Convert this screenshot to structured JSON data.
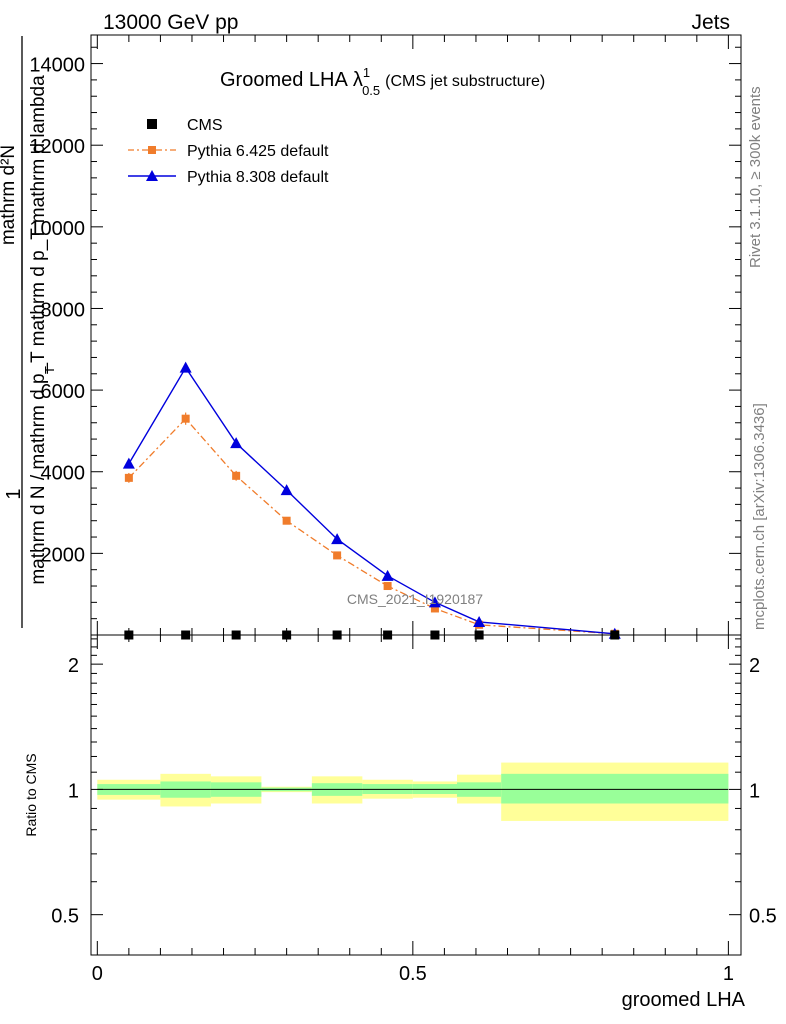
{
  "header": {
    "left": "13000 GeV pp",
    "right": "Jets",
    "side_top": "Rivet 3.1.10, ≥ 300k events",
    "side_bottom": "mcplots.cern.ch [arXiv:1306.3436]",
    "watermark": "CMS_2021_I1920187"
  },
  "colors": {
    "pythia6": "#f07c2b",
    "pythia8": "#0000dd",
    "cms": "#000000",
    "band_inner": "#99ff99",
    "band_outer": "#ffff99",
    "side_text": "#808080"
  },
  "chart_data": [
    {
      "type": "line",
      "title": "Groomed LHA",
      "title_symbol": "λ",
      "title_sup": "1",
      "title_sub": "0.5",
      "title_suffix": "(CMS jet substructure)",
      "ylabel_top": "1",
      "ylabel_numerator": "mathrm d²N",
      "ylabel_denominator": "mathrm d N / mathrm d p_T mathrm d p_T mathrm d lambda",
      "ylabel_sub": "T",
      "xlim": [
        -0.01,
        1.02
      ],
      "ylim": [
        0,
        14700
      ],
      "yticks": [
        2000,
        4000,
        6000,
        8000,
        10000,
        12000,
        14000
      ],
      "ytick_labels": [
        "2000",
        "4000",
        "6000",
        "8000",
        "10000",
        "12000",
        "14000"
      ],
      "legend_position": "top-left",
      "legend": [
        {
          "label": "CMS",
          "marker": "square"
        },
        {
          "label": "Pythia 6.425 default",
          "marker": "square",
          "style": "dash-dot"
        },
        {
          "label": "Pythia 8.308 default",
          "marker": "triangle",
          "style": "solid"
        }
      ],
      "series": [
        {
          "name": "CMS",
          "x": [
            0.05,
            0.14,
            0.22,
            0.3,
            0.38,
            0.46,
            0.535,
            0.605,
            0.82
          ],
          "y": [
            0,
            0,
            0,
            0,
            0,
            0,
            0,
            0,
            0
          ]
        },
        {
          "name": "Pythia 6.425 default",
          "x": [
            0.05,
            0.14,
            0.22,
            0.3,
            0.38,
            0.46,
            0.535,
            0.605,
            0.82
          ],
          "y": [
            3850,
            5300,
            3900,
            2800,
            1950,
            1200,
            650,
            250,
            30
          ],
          "err": [
            120,
            150,
            120,
            60,
            60,
            60,
            40,
            20,
            10
          ]
        },
        {
          "name": "Pythia 8.308 default",
          "x": [
            0.05,
            0.14,
            0.22,
            0.3,
            0.38,
            0.46,
            0.535,
            0.605,
            0.82
          ],
          "y": [
            4200,
            6550,
            4700,
            3550,
            2350,
            1450,
            800,
            320,
            30
          ]
        }
      ]
    },
    {
      "type": "area",
      "ylabel": "Ratio to CMS",
      "xlabel": "groomed LHA",
      "xlim": [
        -0.01,
        1.02
      ],
      "ylim": [
        0.4,
        2.35
      ],
      "log_y": true,
      "yticks": [
        0.5,
        1,
        2
      ],
      "ytick_labels": [
        "0.5",
        "1",
        "2"
      ],
      "xticks": [
        0,
        0.5,
        1
      ],
      "xtick_labels": [
        "0",
        "0.5",
        "1"
      ],
      "reference_line": 1,
      "bins": [
        {
          "lo": 0.0,
          "hi": 0.1,
          "inner": [
            0.97,
            1.03
          ],
          "outer": [
            0.945,
            1.055
          ]
        },
        {
          "lo": 0.1,
          "hi": 0.18,
          "inner": [
            0.955,
            1.045
          ],
          "outer": [
            0.91,
            1.09
          ]
        },
        {
          "lo": 0.18,
          "hi": 0.26,
          "inner": [
            0.96,
            1.04
          ],
          "outer": [
            0.925,
            1.075
          ]
        },
        {
          "lo": 0.26,
          "hi": 0.34,
          "inner": [
            0.99,
            1.01
          ],
          "outer": [
            0.985,
            1.015
          ]
        },
        {
          "lo": 0.34,
          "hi": 0.42,
          "inner": [
            0.965,
            1.035
          ],
          "outer": [
            0.925,
            1.075
          ]
        },
        {
          "lo": 0.42,
          "hi": 0.5,
          "inner": [
            0.975,
            1.03
          ],
          "outer": [
            0.95,
            1.055
          ]
        },
        {
          "lo": 0.5,
          "hi": 0.57,
          "inner": [
            0.975,
            1.03
          ],
          "outer": [
            0.955,
            1.045
          ]
        },
        {
          "lo": 0.57,
          "hi": 0.64,
          "inner": [
            0.96,
            1.04
          ],
          "outer": [
            0.925,
            1.085
          ]
        },
        {
          "lo": 0.64,
          "hi": 1.0,
          "inner": [
            0.925,
            1.09
          ],
          "outer": [
            0.84,
            1.16
          ]
        }
      ]
    }
  ]
}
